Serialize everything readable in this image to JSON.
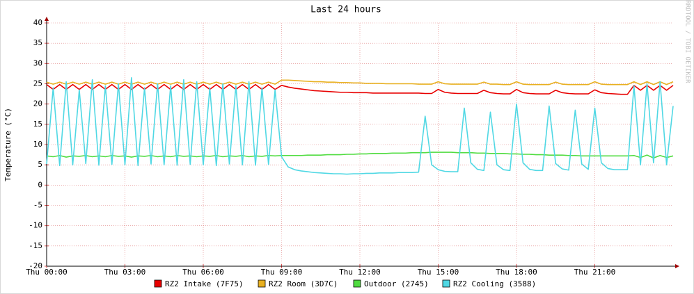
{
  "chart_data": {
    "type": "line",
    "title": "Last 24 hours",
    "y_label": "Temperature (°C)",
    "side_label": "RRDTOOL / TOBI OETIKER",
    "xlim": [
      0,
      24
    ],
    "xticks": [
      {
        "value": 0,
        "label": "Thu 00:00"
      },
      {
        "value": 3,
        "label": "Thu 03:00"
      },
      {
        "value": 6,
        "label": "Thu 06:00"
      },
      {
        "value": 9,
        "label": "Thu 09:00"
      },
      {
        "value": 12,
        "label": "Thu 12:00"
      },
      {
        "value": 15,
        "label": "Thu 15:00"
      },
      {
        "value": 18,
        "label": "Thu 18:00"
      },
      {
        "value": 21,
        "label": "Thu 21:00"
      }
    ],
    "ylim": [
      -20,
      40
    ],
    "yticks": [
      -20,
      -15,
      -10,
      -5,
      0,
      5,
      10,
      15,
      20,
      25,
      30,
      35,
      40
    ],
    "grid": true,
    "x": [
      0,
      0.25,
      0.5,
      0.75,
      1,
      1.25,
      1.5,
      1.75,
      2,
      2.25,
      2.5,
      2.75,
      3,
      3.25,
      3.5,
      3.75,
      4,
      4.25,
      4.5,
      4.75,
      5,
      5.25,
      5.5,
      5.75,
      6,
      6.25,
      6.5,
      6.75,
      7,
      7.25,
      7.5,
      7.75,
      8,
      8.25,
      8.5,
      8.75,
      9,
      9.25,
      9.5,
      9.75,
      10,
      10.25,
      10.5,
      10.75,
      11,
      11.25,
      11.5,
      11.75,
      12,
      12.25,
      12.5,
      12.75,
      13,
      13.25,
      13.5,
      13.75,
      14,
      14.25,
      14.5,
      14.75,
      15,
      15.25,
      15.5,
      15.75,
      16,
      16.25,
      16.5,
      16.75,
      17,
      17.25,
      17.5,
      17.75,
      18,
      18.25,
      18.5,
      18.75,
      19,
      19.25,
      19.5,
      19.75,
      20,
      20.25,
      20.5,
      20.75,
      21,
      21.25,
      21.5,
      21.75,
      22,
      22.25,
      22.5,
      22.75,
      23,
      23.25,
      23.5,
      23.75,
      24
    ],
    "series": [
      {
        "name": "RZ2 Intake (7F75)",
        "color": "#e80000",
        "values": [
          24.8,
          23.6,
          24.8,
          23.6,
          24.8,
          23.6,
          24.8,
          23.6,
          24.8,
          23.6,
          24.8,
          23.6,
          24.8,
          23.6,
          24.8,
          23.6,
          24.8,
          23.6,
          24.8,
          23.6,
          24.8,
          23.6,
          24.8,
          23.6,
          24.8,
          23.6,
          24.8,
          23.6,
          24.8,
          23.6,
          24.8,
          23.6,
          24.8,
          23.6,
          24.8,
          23.6,
          24.6,
          24.2,
          23.9,
          23.7,
          23.5,
          23.3,
          23.2,
          23.1,
          23.0,
          22.9,
          22.9,
          22.8,
          22.8,
          22.8,
          22.7,
          22.7,
          22.7,
          22.7,
          22.7,
          22.7,
          22.7,
          22.7,
          22.6,
          22.6,
          23.6,
          22.9,
          22.7,
          22.6,
          22.6,
          22.6,
          22.6,
          23.4,
          22.8,
          22.6,
          22.5,
          22.5,
          23.6,
          22.8,
          22.6,
          22.5,
          22.5,
          22.5,
          23.4,
          22.8,
          22.6,
          22.5,
          22.5,
          22.5,
          23.5,
          22.8,
          22.6,
          22.5,
          22.4,
          22.4,
          24.6,
          23.4,
          24.6,
          23.4,
          24.6,
          23.4,
          24.6
        ]
      },
      {
        "name": "RZ2 Room (3D7C)",
        "color": "#e8b020",
        "values": [
          25.4,
          24.9,
          25.4,
          24.9,
          25.4,
          24.9,
          25.4,
          24.9,
          25.4,
          24.9,
          25.4,
          24.9,
          25.4,
          24.9,
          25.4,
          24.9,
          25.4,
          24.9,
          25.4,
          24.9,
          25.4,
          24.9,
          25.4,
          24.9,
          25.4,
          24.9,
          25.4,
          24.9,
          25.4,
          24.9,
          25.4,
          24.9,
          25.4,
          24.9,
          25.4,
          24.9,
          25.9,
          25.9,
          25.8,
          25.7,
          25.6,
          25.5,
          25.5,
          25.4,
          25.4,
          25.3,
          25.3,
          25.2,
          25.2,
          25.1,
          25.1,
          25.1,
          25.0,
          25.0,
          25.0,
          25.0,
          25.0,
          24.9,
          24.9,
          24.9,
          25.5,
          25.0,
          24.9,
          24.9,
          24.9,
          24.9,
          24.9,
          25.4,
          24.9,
          24.9,
          24.8,
          24.8,
          25.5,
          24.9,
          24.8,
          24.8,
          24.8,
          24.8,
          25.4,
          24.9,
          24.8,
          24.8,
          24.8,
          24.8,
          25.5,
          24.9,
          24.8,
          24.8,
          24.8,
          24.8,
          25.5,
          24.8,
          25.5,
          24.8,
          25.5,
          24.8,
          25.5
        ]
      },
      {
        "name": "Outdoor (2745)",
        "color": "#50dc40",
        "values": [
          7.2,
          7.0,
          7.3,
          6.9,
          7.2,
          7.1,
          7.3,
          7.0,
          7.2,
          7.0,
          7.3,
          7.1,
          7.2,
          6.9,
          7.2,
          7.1,
          7.3,
          7.0,
          7.2,
          7.0,
          7.3,
          7.1,
          7.2,
          7.0,
          7.2,
          7.1,
          7.3,
          7.0,
          7.2,
          7.1,
          7.3,
          7.0,
          7.2,
          7.1,
          7.3,
          7.2,
          7.3,
          7.3,
          7.3,
          7.3,
          7.4,
          7.4,
          7.4,
          7.5,
          7.5,
          7.5,
          7.6,
          7.6,
          7.7,
          7.7,
          7.8,
          7.8,
          7.8,
          7.9,
          7.9,
          7.9,
          8.0,
          8.0,
          8.0,
          8.1,
          8.1,
          8.1,
          8.1,
          8.0,
          8.0,
          8.0,
          7.9,
          7.9,
          7.8,
          7.8,
          7.8,
          7.7,
          7.7,
          7.6,
          7.6,
          7.5,
          7.5,
          7.4,
          7.4,
          7.4,
          7.3,
          7.3,
          7.2,
          7.2,
          7.2,
          7.2,
          7.2,
          7.2,
          7.2,
          7.2,
          7.3,
          6.8,
          7.4,
          6.7,
          7.3,
          6.8,
          7.2
        ]
      },
      {
        "name": "RZ2 Cooling (3588)",
        "color": "#50d8e4",
        "values": [
          5.2,
          24.0,
          4.8,
          25.5,
          5.0,
          23.5,
          5.3,
          26.0,
          4.9,
          24.5,
          5.1,
          25.0,
          5.0,
          26.5,
          4.8,
          24.0,
          5.2,
          25.0,
          5.0,
          24.5,
          4.9,
          26.0,
          5.1,
          25.5,
          5.0,
          24.0,
          4.8,
          25.0,
          5.2,
          24.5,
          5.0,
          25.5,
          4.9,
          24.0,
          5.1,
          23.5,
          7.0,
          4.5,
          3.8,
          3.5,
          3.3,
          3.1,
          3.0,
          2.9,
          2.8,
          2.8,
          2.7,
          2.8,
          2.8,
          2.9,
          2.9,
          3.0,
          3.0,
          3.0,
          3.1,
          3.1,
          3.1,
          3.2,
          17.0,
          5.0,
          3.8,
          3.4,
          3.3,
          3.3,
          19.0,
          5.5,
          3.9,
          3.6,
          18.0,
          5.0,
          3.8,
          3.6,
          20.0,
          5.5,
          3.9,
          3.6,
          3.6,
          19.5,
          5.3,
          4.0,
          3.7,
          18.5,
          5.2,
          3.9,
          19.0,
          5.5,
          4.1,
          3.8,
          3.8,
          3.8,
          24.5,
          5.0,
          25.0,
          5.5,
          25.5,
          5.0,
          19.5
        ]
      }
    ]
  }
}
